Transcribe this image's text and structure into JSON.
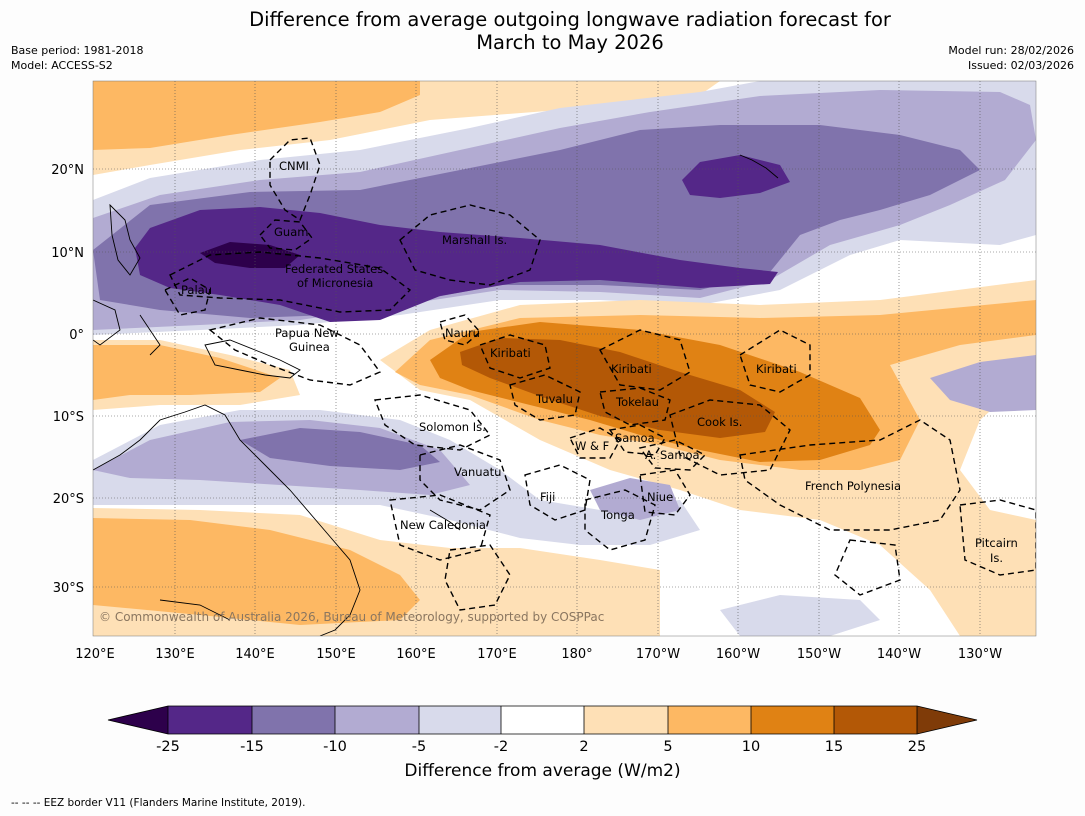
{
  "title_line1": "Difference from average outgoing longwave radiation forecast for",
  "title_line2": "March to May 2026",
  "base_period": "Base period: 1981-2018",
  "model": "Model: ACCESS-S2",
  "model_run": "Model run: 28/02/2026",
  "issued": "Issued: 02/03/2026",
  "copyright": "© Commonwealth of Australia 2026, Bureau of Meteorology, supported by COSPPac",
  "lat_ticks": [
    "20°N",
    "10°N",
    "0°",
    "10°S",
    "20°S",
    "30°S"
  ],
  "lon_ticks": [
    "120°E",
    "130°E",
    "140°E",
    "150°E",
    "160°E",
    "170°E",
    "180°",
    "170°W",
    "160°W",
    "150°W",
    "140°W",
    "130°W"
  ],
  "region_labels": {
    "cnmi": "CNMI",
    "guam": "Guam",
    "marshall": "Marshall Is.",
    "fsm1": "Federated States",
    "fsm2": "of Micronesia",
    "palau": "Palau",
    "png1": "Papua New",
    "png2": "Guinea",
    "nauru": "Nauru",
    "kiribati_w": "Kiribati",
    "kiribati_c": "Kiribati",
    "kiribati_e": "Kiribati",
    "tuvalu": "Tuvalu",
    "tokelau": "Tokelau",
    "cook": "Cook Is.",
    "solomon": "Solomon Is.",
    "wf": "W & F",
    "samoa": "Samoa",
    "asamoa": "A. Samoa",
    "vanuatu": "Vanuatu",
    "fiji": "Fiji",
    "niue": "Niue",
    "tonga": "Tonga",
    "french_polynesia": "French Polynesia",
    "new_caledonia": "New Caledonia",
    "pitcairn1": "Pitcairn",
    "pitcairn2": "Is."
  },
  "colorbar": {
    "title": "Difference from average (W/m2)",
    "ticks": [
      "-25",
      "-15",
      "-10",
      "-5",
      "-2",
      "2",
      "5",
      "10",
      "15",
      "25"
    ],
    "colors": {
      "lt_neg25": "#2d004b",
      "neg25_15": "#542788",
      "neg15_10": "#8073ac",
      "neg10_5": "#b2abd2",
      "neg5_2": "#d8daeb",
      "neutral": "#ffffff",
      "pos2_5": "#fee0b6",
      "pos5_10": "#fdb863",
      "pos10_15": "#e08214",
      "pos15_25": "#b35806",
      "gt25": "#7f3b08"
    }
  },
  "footer": "-- -- -- EEZ border V11 (Flanders Marine Institute, 2019)."
}
